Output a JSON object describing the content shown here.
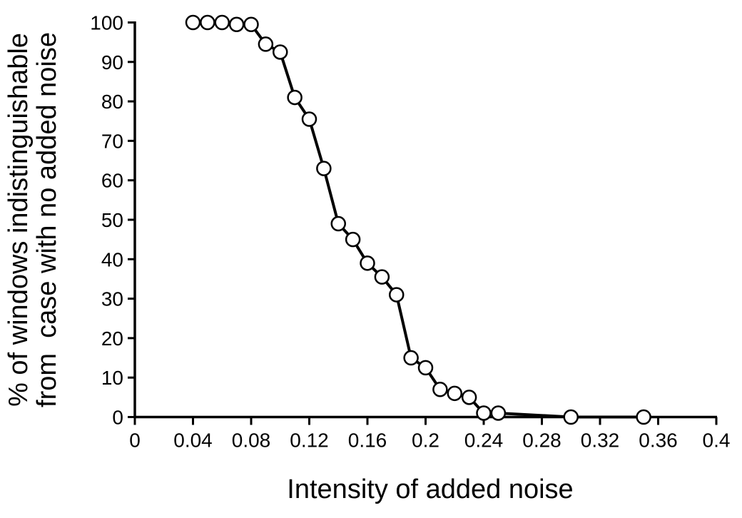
{
  "chart_data": {
    "type": "line",
    "title": "",
    "xlabel": "Intensity of added noise",
    "ylabel_lines": [
      "% of windows indistinguishable",
      "from  case with no added noise"
    ],
    "xlim": [
      0,
      0.4
    ],
    "ylim": [
      0,
      100
    ],
    "x_ticks": [
      0,
      0.04,
      0.08,
      0.12,
      0.16,
      0.2,
      0.24,
      0.28,
      0.32,
      0.36,
      0.4
    ],
    "x_tick_labels": [
      "0",
      "0.04",
      "0.08",
      "0.12",
      "0.16",
      "0.2",
      "0.24",
      "0.28",
      "0.32",
      "0.36",
      "0.4"
    ],
    "y_ticks": [
      0,
      10,
      20,
      30,
      40,
      50,
      60,
      70,
      80,
      90,
      100
    ],
    "y_tick_labels": [
      "0",
      "10",
      "20",
      "30",
      "40",
      "50",
      "60",
      "70",
      "80",
      "90",
      "100"
    ],
    "x": [
      0.04,
      0.05,
      0.06,
      0.07,
      0.08,
      0.09,
      0.1,
      0.11,
      0.12,
      0.13,
      0.14,
      0.15,
      0.16,
      0.17,
      0.18,
      0.19,
      0.2,
      0.21,
      0.22,
      0.23,
      0.24,
      0.25,
      0.3,
      0.35
    ],
    "y": [
      100,
      100,
      100,
      99.5,
      99.5,
      94.5,
      92.5,
      81,
      75.5,
      63,
      49,
      45,
      39,
      35.5,
      31,
      15,
      12.5,
      7,
      6,
      5,
      1,
      1,
      0,
      0
    ],
    "grid": "off",
    "legend": "none",
    "marker": "open-circle",
    "line_color": "#000000",
    "marker_fill": "#ffffff",
    "marker_stroke": "#000000",
    "axis_color": "#000000",
    "background": "#ffffff",
    "line_width": 4,
    "marker_radius": 9.5,
    "marker_stroke_width": 2.5
  }
}
